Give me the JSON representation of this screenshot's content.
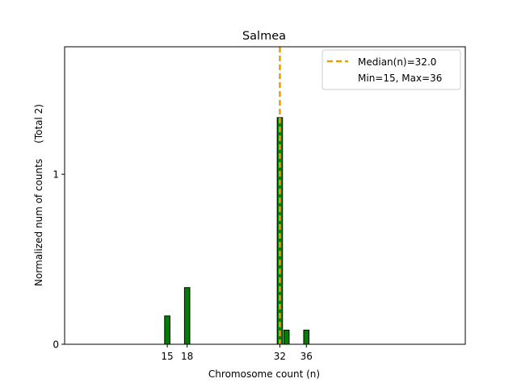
{
  "chart_data": {
    "type": "bar",
    "title": "Salmea",
    "xlabel": "Chromosome count (n)",
    "ylabel": "Normalized num of counts     (Total 2)",
    "xlim": [
      -0.5,
      60
    ],
    "ylim": [
      0,
      1.75
    ],
    "xticks": [
      15,
      18,
      32,
      36
    ],
    "yticks": [
      0,
      1
    ],
    "bar_width": 0.8,
    "bar_color": "#008000",
    "bar_edge_color": "#000000",
    "bars": [
      {
        "x": 15,
        "value": 0.1667
      },
      {
        "x": 18,
        "value": 0.3333
      },
      {
        "x": 32,
        "value": 1.3333
      },
      {
        "x": 33,
        "value": 0.0833
      },
      {
        "x": 36,
        "value": 0.0833
      }
    ],
    "median": {
      "value": 32.0,
      "color": "#E8A000"
    },
    "legend": {
      "placement": "top-right",
      "entries": [
        "Median(n)=32.0",
        "Min=15, Max=36"
      ]
    }
  }
}
